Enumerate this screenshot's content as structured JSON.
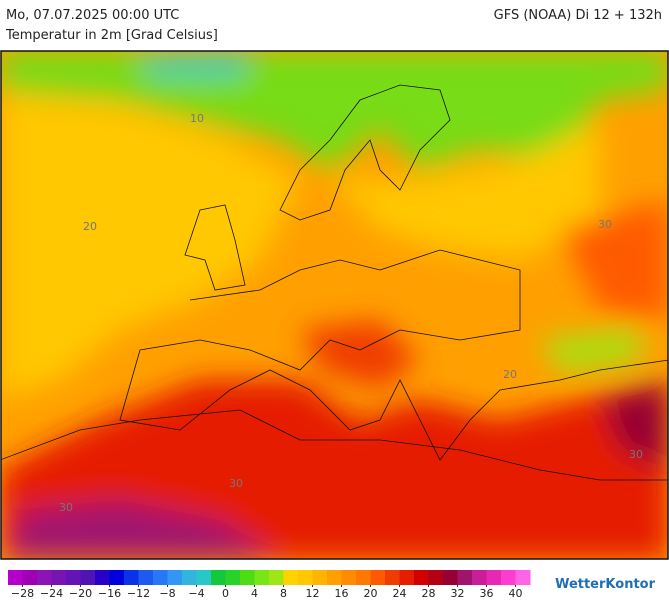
{
  "header": {
    "left": "Mo, 07.07.2025 00:00 UTC",
    "right": "GFS (NOAA) Di 12 + 132h",
    "subtitle": "Temperatur in 2m [Grad Celsius]"
  },
  "map": {
    "contour_labels": [
      "10",
      "20",
      "30",
      "30",
      "30",
      "30",
      "20"
    ]
  },
  "legend": {
    "range": [
      -30,
      42
    ],
    "colors": [
      "#b400c8",
      "#a000b4",
      "#8c14b4",
      "#7814b4",
      "#6414b4",
      "#5014b4",
      "#2800c8",
      "#0000dc",
      "#0a32e6",
      "#1e5af0",
      "#2878f5",
      "#3296f5",
      "#32b4dc",
      "#28c8c8",
      "#14c83c",
      "#28d228",
      "#50dc14",
      "#78e614",
      "#a0e614",
      "#ffd200",
      "#ffc800",
      "#ffb400",
      "#ffa000",
      "#ff8c00",
      "#ff7800",
      "#ff5a00",
      "#f03c00",
      "#e61e00",
      "#d20000",
      "#b40014",
      "#960032",
      "#a0146e",
      "#c81e96",
      "#e628b4",
      "#ff3cd2",
      "#ff64e6"
    ],
    "ticks": [
      {
        "value": -28,
        "label": "−28"
      },
      {
        "value": -24,
        "label": "−24"
      },
      {
        "value": -20,
        "label": "−20"
      },
      {
        "value": -16,
        "label": "−16"
      },
      {
        "value": -12,
        "label": "−12"
      },
      {
        "value": -8,
        "label": "−8"
      },
      {
        "value": -4,
        "label": "−4"
      },
      0,
      4,
      8,
      12,
      16,
      20,
      24,
      28,
      32,
      36,
      40
    ]
  },
  "logo": "WetterKontor"
}
